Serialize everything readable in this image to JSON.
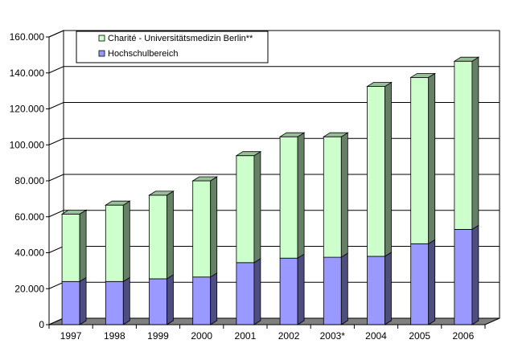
{
  "chart_data": {
    "type": "bar",
    "stacked": true,
    "categories": [
      "1997",
      "1998",
      "1999",
      "2000",
      "2001",
      "2002",
      "2003*",
      "2004",
      "2005",
      "2006"
    ],
    "series": [
      {
        "name": "Hochschulbereich",
        "color": "#9999ff",
        "values": [
          24000,
          24000,
          25500,
          26500,
          34500,
          37000,
          37500,
          38000,
          45000,
          53000
        ]
      },
      {
        "name": "Charité - Universitätsmedizin Berlin**",
        "color": "#ccffcc",
        "values": [
          37500,
          42500,
          46500,
          53500,
          59500,
          67500,
          67000,
          94500,
          92500,
          93500
        ]
      }
    ],
    "y_ticks": [
      "0",
      "20.000",
      "40.000",
      "60.000",
      "80.000",
      "100.000",
      "120.000",
      "140.000",
      "160.000"
    ],
    "ylim": [
      0,
      160000
    ],
    "grid": true,
    "legend_position": "top-left",
    "three_d": true
  }
}
